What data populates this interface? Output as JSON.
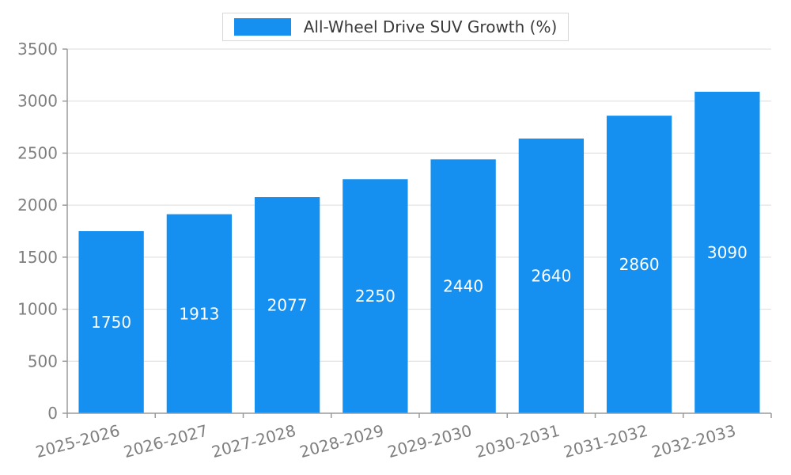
{
  "chart_data": {
    "type": "bar",
    "title": "All-Wheel Drive SUV Growth (%)",
    "categories": [
      "2025-2026",
      "2026-2027",
      "2027-2028",
      "2028-2029",
      "2029-2030",
      "2030-2031",
      "2031-2032",
      "2032-2033"
    ],
    "values": [
      1750,
      1913,
      2077,
      2250,
      2440,
      2640,
      2860,
      3090
    ],
    "ylim": [
      0,
      3500
    ],
    "ytick_step": 500,
    "ytick_labels": [
      "0",
      "500",
      "1000",
      "1500",
      "2000",
      "2500",
      "3000",
      "3500"
    ],
    "grid": true,
    "legend_position": "top",
    "bar_color": "#1590F0",
    "value_label_color": "#FFFFFF",
    "axis_color": "#9a9a9a",
    "tick_label_color": "#7f7f7f",
    "grid_color": "#dcdcdc",
    "legend_text_color": "#3a3a3a"
  }
}
